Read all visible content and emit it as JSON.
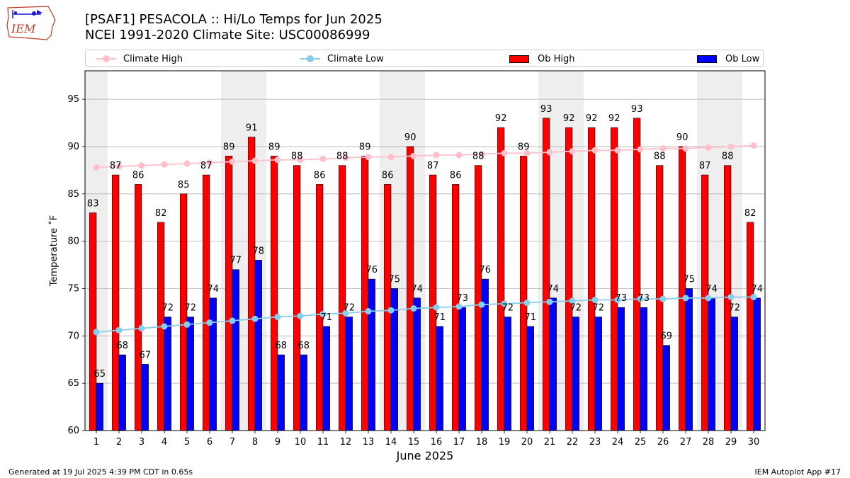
{
  "header": {
    "logo_text": "IEM",
    "title_line1": "[PSAF1] PESACOLA :: Hi/Lo Temps for Jun 2025",
    "title_line2": "NCEI 1991-2020 Climate Site: USC00086999"
  },
  "legend": {
    "climate_high": "Climate High",
    "climate_low": "Climate Low",
    "ob_high": "Ob High",
    "ob_low": "Ob Low"
  },
  "footer": {
    "generated": "Generated at 19 Jul 2025 4:39 PM CDT in 0.65s",
    "app": "IEM Autoplot App #17"
  },
  "colors": {
    "ob_high": "#ff0000",
    "ob_low": "#0000ff",
    "climate_high": "#ffc0cb",
    "climate_low": "#87ceeb",
    "weekend_band": "#eeeeee",
    "grid": "#b0b0b0"
  },
  "chart_data": {
    "type": "bar",
    "xlabel": "June 2025",
    "ylabel": "Temperature ˚F",
    "ylim": [
      60,
      98
    ],
    "yticks": [
      60,
      65,
      70,
      75,
      80,
      85,
      90,
      95
    ],
    "grid": "horizontal",
    "legend_position": "top",
    "categories": [
      "1",
      "2",
      "3",
      "4",
      "5",
      "6",
      "7",
      "8",
      "9",
      "10",
      "11",
      "12",
      "13",
      "14",
      "15",
      "16",
      "17",
      "18",
      "19",
      "20",
      "21",
      "22",
      "23",
      "24",
      "25",
      "26",
      "27",
      "28",
      "29",
      "30"
    ],
    "weekend_days": [
      1,
      7,
      8,
      14,
      15,
      21,
      22,
      28,
      29
    ],
    "series": [
      {
        "name": "Ob High",
        "kind": "bar",
        "values": [
          83,
          87,
          86,
          82,
          85,
          87,
          89,
          91,
          89,
          88,
          86,
          88,
          89,
          86,
          90,
          87,
          86,
          88,
          92,
          89,
          93,
          92,
          92,
          92,
          93,
          88,
          90,
          87,
          88,
          82
        ]
      },
      {
        "name": "Ob Low",
        "kind": "bar",
        "values": [
          65,
          68,
          67,
          72,
          72,
          74,
          77,
          78,
          68,
          68,
          71,
          72,
          76,
          75,
          74,
          71,
          73,
          76,
          72,
          71,
          74,
          72,
          72,
          73,
          73,
          69,
          75,
          74,
          72,
          74
        ]
      },
      {
        "name": "Climate High",
        "kind": "line",
        "values": [
          87.8,
          87.9,
          88.0,
          88.1,
          88.2,
          88.3,
          88.4,
          88.5,
          88.6,
          88.6,
          88.7,
          88.8,
          88.9,
          88.9,
          89.0,
          89.1,
          89.1,
          89.2,
          89.3,
          89.3,
          89.4,
          89.5,
          89.6,
          89.6,
          89.7,
          89.8,
          89.8,
          89.9,
          90.0,
          90.1
        ]
      },
      {
        "name": "Climate Low",
        "kind": "line",
        "values": [
          70.4,
          70.6,
          70.8,
          71.0,
          71.2,
          71.4,
          71.6,
          71.8,
          72.0,
          72.1,
          72.3,
          72.4,
          72.6,
          72.7,
          72.9,
          73.0,
          73.1,
          73.3,
          73.4,
          73.5,
          73.6,
          73.7,
          73.8,
          73.8,
          73.9,
          73.9,
          74.0,
          74.0,
          74.1,
          74.1
        ]
      }
    ]
  }
}
